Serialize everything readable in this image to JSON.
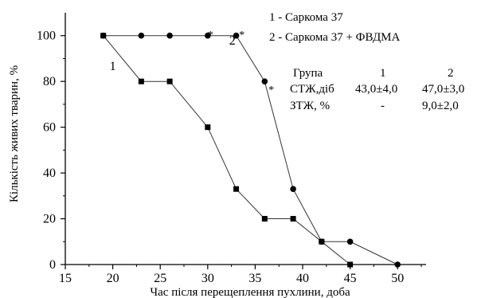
{
  "chart_data": {
    "type": "line",
    "xlabel": "Час після перещеплення пухлини, доба",
    "ylabel": "Кількість живих тварин, %",
    "xlim": [
      15,
      53
    ],
    "ylim": [
      0,
      110
    ],
    "x_ticks": [
      15,
      20,
      25,
      30,
      35,
      40,
      45,
      50
    ],
    "y_ticks": [
      0,
      20,
      40,
      60,
      80,
      100
    ],
    "series": [
      {
        "name": "1 - Саркома 37",
        "marker": "square",
        "points": [
          [
            19,
            100
          ],
          [
            23,
            80
          ],
          [
            26,
            80
          ],
          [
            30,
            60
          ],
          [
            33,
            33
          ],
          [
            36,
            20
          ],
          [
            39,
            20
          ],
          [
            42,
            10
          ],
          [
            45,
            0
          ]
        ]
      },
      {
        "name": "2 - Саркома 37 + ФВДМА",
        "marker": "circle",
        "points": [
          [
            19,
            100
          ],
          [
            23,
            100
          ],
          [
            26,
            100
          ],
          [
            30,
            100
          ],
          [
            33,
            100
          ],
          [
            36,
            80
          ],
          [
            39,
            33
          ],
          [
            42,
            10
          ],
          [
            45,
            10
          ],
          [
            50,
            0
          ]
        ]
      }
    ],
    "legend": [
      "1 - Саркома 37",
      "2 - Саркома 37 + ФВДМА"
    ],
    "curve_labels": [
      {
        "text": "1",
        "x": 20,
        "y": 85
      },
      {
        "text": "2",
        "x": 32.6,
        "y": 96
      }
    ],
    "significance_marks": [
      {
        "text": "*",
        "x": 30.3,
        "y": 101
      },
      {
        "text": "*",
        "x": 33.6,
        "y": 101
      },
      {
        "text": "*",
        "x": 36.7,
        "y": 77
      }
    ],
    "table": {
      "header": [
        "Група",
        "1",
        "2"
      ],
      "rows": [
        [
          "СТЖ,діб",
          "43,0±4,0",
          "47,0±3,0"
        ],
        [
          "ЗТЖ, %",
          "-",
          "9,0±2,0"
        ]
      ]
    }
  }
}
